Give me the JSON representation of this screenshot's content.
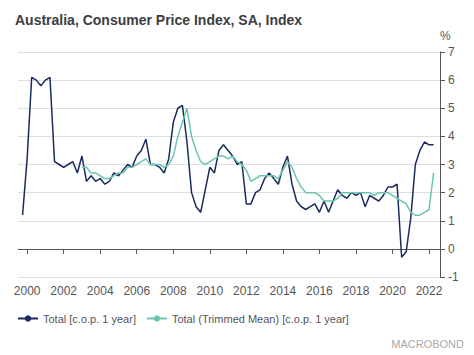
{
  "chart_data": {
    "type": "line",
    "title": "Australia, Consumer Price Index, SA, Index",
    "ylabel": "%",
    "annotations": [
      "MACROBOND"
    ],
    "xlim": [
      1999.5,
      2022.6
    ],
    "xticks": [
      2000,
      2002,
      2004,
      2006,
      2008,
      2010,
      2012,
      2014,
      2016,
      2018,
      2020,
      2022
    ],
    "ylim": [
      -1,
      7
    ],
    "yticks": [
      -1,
      0,
      1,
      2,
      3,
      4,
      5,
      6,
      7
    ],
    "grid": true,
    "legend": "lower left",
    "series": [
      {
        "name": "Total [c.o.p. 1 year]",
        "color": "#1a2b5e",
        "x": [
          1999.75,
          2000.0,
          2000.25,
          2000.5,
          2000.75,
          2001.0,
          2001.25,
          2001.5,
          2001.75,
          2002.0,
          2002.25,
          2002.5,
          2002.75,
          2003.0,
          2003.25,
          2003.5,
          2003.75,
          2004.0,
          2004.25,
          2004.5,
          2004.75,
          2005.0,
          2005.25,
          2005.5,
          2005.75,
          2006.0,
          2006.25,
          2006.5,
          2006.75,
          2007.0,
          2007.25,
          2007.5,
          2007.75,
          2008.0,
          2008.25,
          2008.5,
          2008.75,
          2009.0,
          2009.25,
          2009.5,
          2009.75,
          2010.0,
          2010.25,
          2010.5,
          2010.75,
          2011.0,
          2011.25,
          2011.5,
          2011.75,
          2012.0,
          2012.25,
          2012.5,
          2012.75,
          2013.0,
          2013.25,
          2013.5,
          2013.75,
          2014.0,
          2014.25,
          2014.5,
          2014.75,
          2015.0,
          2015.25,
          2015.5,
          2015.75,
          2016.0,
          2016.25,
          2016.5,
          2016.75,
          2017.0,
          2017.25,
          2017.5,
          2017.75,
          2018.0,
          2018.25,
          2018.5,
          2018.75,
          2019.0,
          2019.25,
          2019.5,
          2019.75,
          2020.0,
          2020.25,
          2020.5,
          2020.75,
          2021.0,
          2021.25,
          2021.5,
          2021.75,
          2022.0,
          2022.25
        ],
        "values": [
          1.2,
          3.2,
          6.1,
          6.0,
          5.8,
          6.0,
          6.1,
          3.1,
          3.0,
          2.9,
          3.0,
          3.1,
          2.7,
          3.3,
          2.4,
          2.6,
          2.4,
          2.5,
          2.3,
          2.4,
          2.7,
          2.6,
          2.8,
          3.0,
          2.9,
          3.3,
          3.5,
          3.9,
          3.0,
          3.0,
          2.9,
          2.7,
          3.2,
          4.5,
          5.0,
          5.1,
          3.8,
          2.0,
          1.5,
          1.3,
          2.1,
          2.9,
          2.7,
          3.5,
          3.7,
          3.5,
          3.3,
          3.0,
          3.1,
          1.6,
          1.6,
          2.0,
          2.1,
          2.5,
          2.7,
          2.5,
          2.3,
          2.9,
          3.3,
          2.3,
          1.7,
          1.5,
          1.4,
          1.5,
          1.6,
          1.3,
          1.7,
          1.3,
          1.7,
          2.1,
          1.9,
          1.8,
          2.0,
          1.9,
          2.0,
          1.5,
          1.9,
          1.8,
          1.7,
          1.9,
          2.2,
          2.2,
          2.3,
          -0.3,
          -0.1,
          1.1,
          3.0,
          3.5,
          3.8,
          3.7,
          3.7
        ]
      },
      {
        "name": "Total (Trimmed Mean) [c.o.p. 1 year]",
        "color": "#6cc5b0",
        "x": [
          2003.0,
          2003.25,
          2003.5,
          2003.75,
          2004.0,
          2004.25,
          2004.5,
          2004.75,
          2005.0,
          2005.25,
          2005.5,
          2005.75,
          2006.0,
          2006.25,
          2006.5,
          2006.75,
          2007.0,
          2007.25,
          2007.5,
          2007.75,
          2008.0,
          2008.25,
          2008.5,
          2008.75,
          2009.0,
          2009.25,
          2009.5,
          2009.75,
          2010.0,
          2010.25,
          2010.5,
          2010.75,
          2011.0,
          2011.25,
          2011.5,
          2011.75,
          2012.0,
          2012.25,
          2012.5,
          2012.75,
          2013.0,
          2013.25,
          2013.5,
          2013.75,
          2014.0,
          2014.25,
          2014.5,
          2014.75,
          2015.0,
          2015.25,
          2015.5,
          2015.75,
          2016.0,
          2016.25,
          2016.5,
          2016.75,
          2017.0,
          2017.25,
          2017.5,
          2017.75,
          2018.0,
          2018.25,
          2018.5,
          2018.75,
          2019.0,
          2019.25,
          2019.5,
          2019.75,
          2020.0,
          2020.25,
          2020.5,
          2020.75,
          2021.0,
          2021.25,
          2021.5,
          2021.75,
          2022.0,
          2022.25
        ],
        "values": [
          2.9,
          2.9,
          2.7,
          2.7,
          2.6,
          2.5,
          2.5,
          2.6,
          2.7,
          2.7,
          2.9,
          2.9,
          3.0,
          3.1,
          3.2,
          3.0,
          3.0,
          3.0,
          2.9,
          3.0,
          3.3,
          4.0,
          4.5,
          5.0,
          4.0,
          3.5,
          3.1,
          3.0,
          3.1,
          3.2,
          3.3,
          3.3,
          3.2,
          3.3,
          3.1,
          3.0,
          2.8,
          2.4,
          2.5,
          2.6,
          2.6,
          2.6,
          2.6,
          2.5,
          2.8,
          3.1,
          2.9,
          2.5,
          2.2,
          2.0,
          2.0,
          2.0,
          1.9,
          1.7,
          1.7,
          1.7,
          1.8,
          2.0,
          2.0,
          2.0,
          2.0,
          2.0,
          2.0,
          2.0,
          1.9,
          2.0,
          2.0,
          2.0,
          1.9,
          1.8,
          1.7,
          1.6,
          1.3,
          1.2,
          1.2,
          1.3,
          1.4,
          2.7
        ]
      }
    ]
  }
}
